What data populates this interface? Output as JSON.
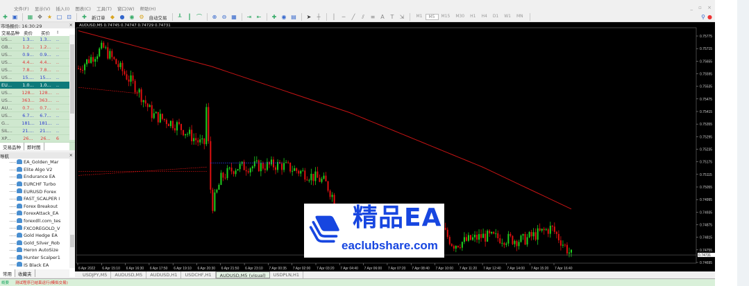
{
  "menu": [
    "文件(F)",
    "显示(V)",
    "插入(I)",
    "图表(C)",
    "工具(T)",
    "窗口(W)",
    "帮助(H)"
  ],
  "window_controls": "_ ▫ ×",
  "toolbar": {
    "new_order": "新订单",
    "auto_trading": "自动交易",
    "timeframes": [
      "M1",
      "M5",
      "M15",
      "M30",
      "H1",
      "H4",
      "D1",
      "W1",
      "MN"
    ],
    "active_timeframe": "M5"
  },
  "market_watch": {
    "title": "市场报价: 16:30:29",
    "headers": [
      "交易品种",
      "卖价",
      "买价",
      "!"
    ],
    "rows": [
      {
        "sym": "US...",
        "bid": "1.3...",
        "ask": "1.3...",
        "x": "..",
        "color": "blue"
      },
      {
        "sym": "GB...",
        "bid": "1.2...",
        "ask": "1.2...",
        "x": "..",
        "color": "red"
      },
      {
        "sym": "US...",
        "bid": "0.9...",
        "ask": "0.9...",
        "x": "..",
        "color": "blue"
      },
      {
        "sym": "US...",
        "bid": "4.4...",
        "ask": "4.4...",
        "x": "..",
        "color": "red"
      },
      {
        "sym": "US...",
        "bid": "7.8...",
        "ask": "7.8...",
        "x": "..",
        "color": "red"
      },
      {
        "sym": "US...",
        "bid": "15....",
        "ask": "15....",
        "x": "..",
        "color": "blue"
      },
      {
        "sym": "EU...",
        "bid": "1.0...",
        "ask": "1.0...",
        "x": "..",
        "color": "sel"
      },
      {
        "sym": "US...",
        "bid": "128...",
        "ask": "128...",
        "x": "..",
        "color": "red"
      },
      {
        "sym": "US...",
        "bid": "363...",
        "ask": "363...",
        "x": "..",
        "color": "red"
      },
      {
        "sym": "AU...",
        "bid": "0.7...",
        "ask": "0.7...",
        "x": "..",
        "color": "red"
      },
      {
        "sym": "US...",
        "bid": "6.7...",
        "ask": "6.7...",
        "x": "..",
        "color": "blue"
      },
      {
        "sym": "G...",
        "bid": "181...",
        "ask": "181...",
        "x": "..",
        "color": "blue"
      },
      {
        "sym": "SIL...",
        "bid": "21....",
        "ask": "21....",
        "x": "..",
        "color": "blue"
      },
      {
        "sym": "XP...",
        "bid": "26...",
        "ask": "26...",
        "x": "6",
        "color": "red"
      }
    ],
    "tabs": [
      "交易品种",
      "即时图"
    ]
  },
  "navigator": {
    "title": "导航",
    "items": [
      "EA_Golden_Mar",
      "Elite Algo V2",
      "Endurance EA",
      "EURCHF Turbo",
      "EURUSD Forex",
      "FAST_SCALPER I",
      "Forex Breakout",
      "ForexAttack_EA",
      "forexdll.com_tes",
      "FXCOREGOLD_V",
      "Gold Hedge EA",
      "Gold_Silver_Rob",
      "Heron AutoSize",
      "Hunter Scalper1",
      "IS Black EA"
    ],
    "tabs": [
      "常用",
      "收藏夹"
    ]
  },
  "chart": {
    "header": "AUDUSD,M5  0.74745 0.74747 0.74729 0.74731",
    "price_labels": [
      "0.75775",
      "0.75715",
      "0.75655",
      "0.75595",
      "0.75535",
      "0.75475",
      "0.75415",
      "0.75355",
      "0.75295",
      "0.75235",
      "0.75175",
      "0.75115",
      "0.75055",
      "0.74995",
      "0.74935",
      "0.74875",
      "0.74815",
      "0.74755",
      "0.74695"
    ],
    "current_price": "0.74731",
    "time_labels": [
      "6 Apr 2022",
      "6 Apr 15:10",
      "6 Apr 16:30",
      "6 Apr 17:50",
      "6 Apr 19:10",
      "6 Apr 20:30",
      "6 Apr 21:50",
      "6 Apr 23:10",
      "7 Apr 00:35",
      "7 Apr 02:00",
      "7 Apr 03:20",
      "7 Apr 04:40",
      "7 Apr 06:00",
      "7 Apr 07:20",
      "7 Apr 08:40",
      "7 Apr 10:00",
      "7 Apr 11:20",
      "7 Apr 12:40",
      "7 Apr 14:00",
      "7 Apr 15:20",
      "7 Apr 16:40"
    ],
    "bull_color": "#1fd01f",
    "bear_color": "#e01010",
    "ma_color": "#c81414",
    "bg": "#000000"
  },
  "chart_tabs": [
    "USDJPY,M5",
    "AUDUSD,M5",
    "AUDUSD,H1",
    "USDCHF,H1",
    "AUDUSD,M5 (visual)",
    "USDPLN,H1"
  ],
  "active_chart_tab": "AUDUSD,M5 (visual)",
  "terminal": {
    "label": "概要",
    "message": "测试程序已结束运行(模拟交易)"
  },
  "watermark": {
    "title": "精品EA",
    "url": "eaclubshare.com"
  },
  "chart_data": {
    "type": "candlestick",
    "price_path": [
      [
        0,
        0.7562
      ],
      [
        0.05,
        0.7572
      ],
      [
        0.12,
        0.7552
      ],
      [
        0.15,
        0.754
      ],
      [
        0.2,
        0.7535
      ],
      [
        0.255,
        0.7525
      ],
      [
        0.26,
        0.7545
      ],
      [
        0.27,
        0.7495
      ],
      [
        0.29,
        0.751
      ],
      [
        0.32,
        0.7515
      ],
      [
        0.41,
        0.7516
      ],
      [
        0.46,
        0.7512
      ],
      [
        0.5,
        0.7508
      ],
      [
        0.53,
        0.7495
      ],
      [
        0.74,
        0.7485
      ],
      [
        0.76,
        0.7478
      ],
      [
        0.82,
        0.7482
      ],
      [
        0.9,
        0.748
      ],
      [
        0.96,
        0.7486
      ],
      [
        1,
        0.7473
      ]
    ],
    "ma_path": [
      [
        0,
        0.758
      ],
      [
        0.27,
        0.7563
      ],
      [
        0.55,
        0.7541
      ],
      [
        0.82,
        0.7515
      ],
      [
        1,
        0.7495
      ]
    ],
    "ylim": [
      0.74695,
      0.75775
    ]
  }
}
